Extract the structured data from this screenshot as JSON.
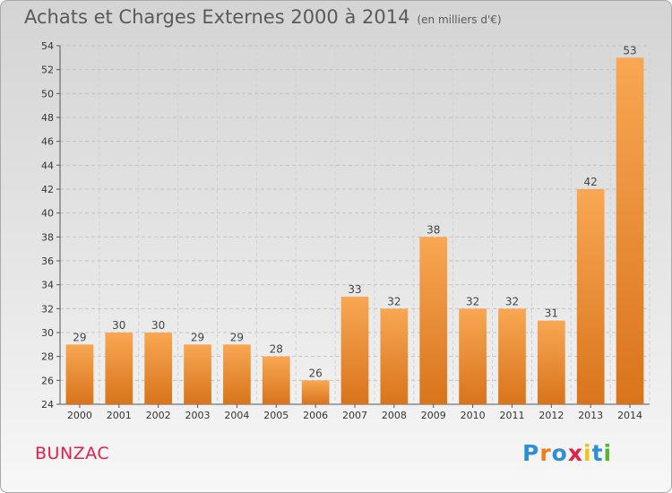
{
  "title": "Achats et Charges Externes 2000 à 2014",
  "subtitle": "(en milliers d'€)",
  "town": "BUNZAC",
  "logo": {
    "text": "Proxiti",
    "letter_colors": [
      "#2f8fd6",
      "#f07c1a",
      "#2f8fd6",
      "#e3204a",
      "#f0c414",
      "#2f8fd6",
      "#58b530"
    ]
  },
  "colors": {
    "bar_light": "#f8a753",
    "bar_dark": "#d8741c",
    "title": "#5a5a5a",
    "town": "#e3204a"
  },
  "chart_data": {
    "type": "bar",
    "categories": [
      "2000",
      "2001",
      "2002",
      "2003",
      "2004",
      "2005",
      "2006",
      "2007",
      "2008",
      "2009",
      "2010",
      "2011",
      "2012",
      "2013",
      "2014"
    ],
    "values": [
      29,
      30,
      30,
      29,
      29,
      28,
      26,
      33,
      32,
      38,
      32,
      32,
      31,
      42,
      53
    ],
    "data_labels": [
      "29",
      "30",
      "30",
      "29",
      "29",
      "28",
      "26",
      "33",
      "32",
      "38",
      "32",
      "32",
      "31",
      "42",
      "53"
    ],
    "ylim": [
      24,
      54
    ],
    "yticks": [
      "24",
      "26",
      "28",
      "30",
      "32",
      "34",
      "36",
      "38",
      "40",
      "42",
      "44",
      "46",
      "48",
      "50",
      "52",
      "54"
    ],
    "grid": true,
    "legend": "none"
  }
}
